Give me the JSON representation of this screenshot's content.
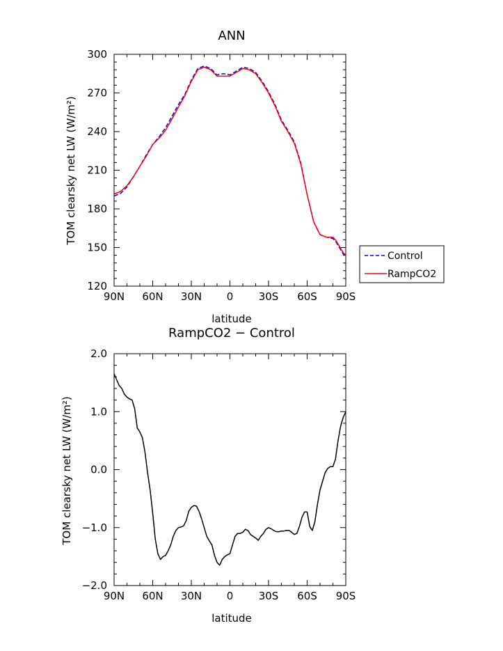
{
  "chart_data": [
    {
      "type": "line",
      "title": "ANN",
      "xlabel": "latitude",
      "ylabel": "TOM clearsky net LW (W/m²)",
      "ylim": [
        120,
        300
      ],
      "xlim": [
        90,
        -90
      ],
      "x_ticks": [
        90,
        60,
        30,
        0,
        -30,
        -60,
        -90
      ],
      "x_tick_labels": [
        "90N",
        "60N",
        "30N",
        "0",
        "30S",
        "60S",
        "90S"
      ],
      "y_ticks": [
        120,
        150,
        180,
        210,
        240,
        270,
        300
      ],
      "y_tick_labels": [
        "120",
        "150",
        "180",
        "210",
        "240",
        "270",
        "300"
      ],
      "legend_position": "right",
      "series": [
        {
          "name": "Control",
          "color": "#0000ff",
          "dash": "dashed",
          "x": [
            90,
            85,
            80,
            75,
            70,
            65,
            60,
            55,
            50,
            45,
            40,
            35,
            30,
            25,
            20,
            15,
            10,
            5,
            0,
            -5,
            -10,
            -15,
            -20,
            -25,
            -30,
            -35,
            -40,
            -45,
            -50,
            -55,
            -60,
            -65,
            -70,
            -75,
            -80,
            -82,
            -85,
            -88,
            -90
          ],
          "y": [
            190,
            192,
            197,
            205,
            213,
            222,
            230,
            236,
            243,
            252,
            261,
            269,
            280,
            289,
            291,
            289,
            284,
            285,
            284,
            287,
            290,
            289,
            286,
            279,
            271,
            261,
            249,
            241,
            232,
            216,
            191,
            170,
            160,
            158,
            157,
            155,
            150,
            145,
            143
          ]
        },
        {
          "name": "RampCO2",
          "color": "#ff0000",
          "dash": "solid",
          "x": [
            90,
            85,
            80,
            75,
            70,
            65,
            60,
            55,
            50,
            45,
            40,
            35,
            30,
            25,
            20,
            15,
            10,
            5,
            0,
            -5,
            -10,
            -15,
            -20,
            -25,
            -30,
            -35,
            -40,
            -45,
            -50,
            -55,
            -60,
            -65,
            -70,
            -75,
            -80,
            -82,
            -85,
            -88,
            -90
          ],
          "y": [
            191.5,
            193.5,
            198,
            205,
            213,
            221,
            230,
            235,
            241,
            250,
            259,
            268,
            279,
            288,
            290,
            288,
            283,
            283,
            283,
            286,
            289,
            288,
            285,
            278,
            270,
            260,
            248,
            240,
            231,
            215,
            191,
            170,
            160,
            158,
            158,
            156,
            151,
            146,
            144
          ]
        }
      ]
    },
    {
      "type": "line",
      "title": "RampCO2 − Control",
      "xlabel": "latitude",
      "ylabel": "TOM clearsky net LW (W/m²)",
      "ylim": [
        -2.0,
        2.0
      ],
      "xlim": [
        90,
        -90
      ],
      "x_ticks": [
        90,
        60,
        30,
        0,
        -30,
        -60,
        -90
      ],
      "x_tick_labels": [
        "90N",
        "60N",
        "30N",
        "0",
        "30S",
        "60S",
        "90S"
      ],
      "y_ticks": [
        -2.0,
        -1.0,
        0.0,
        1.0,
        2.0
      ],
      "y_tick_labels": [
        "−2.0",
        "−1.0",
        "0.0",
        "1.0",
        "2.0"
      ],
      "series": [
        {
          "color": "#000000",
          "dash": "solid",
          "x": [
            90,
            88,
            86,
            84,
            82,
            80,
            78,
            76,
            74,
            72,
            70,
            68,
            66,
            64,
            62,
            60,
            58,
            56,
            54,
            52,
            50,
            48,
            46,
            44,
            42,
            40,
            38,
            36,
            34,
            32,
            30,
            28,
            26,
            24,
            22,
            20,
            18,
            16,
            14,
            12,
            10,
            8,
            6,
            4,
            2,
            0,
            -2,
            -4,
            -6,
            -8,
            -10,
            -12,
            -14,
            -16,
            -18,
            -20,
            -22,
            -24,
            -26,
            -28,
            -30,
            -32,
            -34,
            -36,
            -38,
            -40,
            -42,
            -44,
            -46,
            -48,
            -50,
            -52,
            -54,
            -56,
            -58,
            -60,
            -62,
            -64,
            -66,
            -68,
            -70,
            -72,
            -74,
            -76,
            -78,
            -80,
            -82,
            -84,
            -86,
            -88,
            -90
          ],
          "y": [
            1.65,
            1.55,
            1.45,
            1.4,
            1.3,
            1.25,
            1.22,
            1.2,
            1.05,
            0.72,
            0.65,
            0.55,
            0.3,
            -0.05,
            -0.35,
            -0.75,
            -1.2,
            -1.45,
            -1.55,
            -1.5,
            -1.48,
            -1.4,
            -1.3,
            -1.15,
            -1.05,
            -1.0,
            -0.99,
            -0.97,
            -0.88,
            -0.72,
            -0.65,
            -0.62,
            -0.63,
            -0.72,
            -0.85,
            -1.0,
            -1.15,
            -1.23,
            -1.3,
            -1.48,
            -1.6,
            -1.65,
            -1.55,
            -1.5,
            -1.47,
            -1.45,
            -1.3,
            -1.15,
            -1.1,
            -1.1,
            -1.08,
            -1.03,
            -1.05,
            -1.12,
            -1.15,
            -1.18,
            -1.22,
            -1.15,
            -1.1,
            -1.03,
            -1.0,
            -1.02,
            -1.05,
            -1.07,
            -1.07,
            -1.06,
            -1.06,
            -1.05,
            -1.05,
            -1.08,
            -1.12,
            -1.1,
            -0.98,
            -0.82,
            -0.73,
            -0.73,
            -0.98,
            -1.05,
            -0.9,
            -0.6,
            -0.35,
            -0.2,
            -0.05,
            0.02,
            0.05,
            0.05,
            0.18,
            0.5,
            0.75,
            0.9,
            1.0
          ]
        }
      ]
    }
  ]
}
